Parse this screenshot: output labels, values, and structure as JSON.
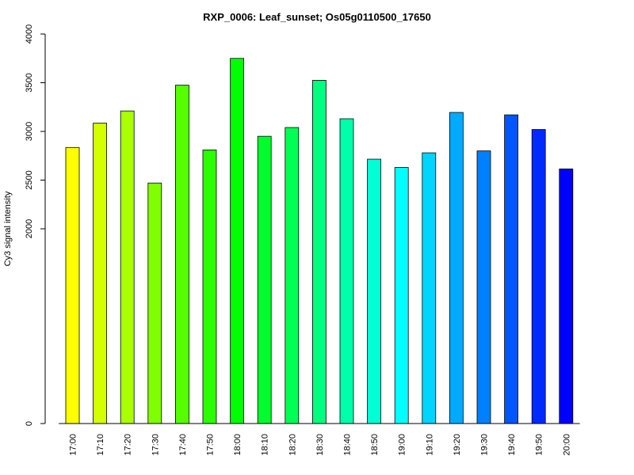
{
  "chart_data": {
    "type": "bar",
    "title": "RXP_0006: Leaf_sunset; Os05g0110500_17650",
    "xlabel": "",
    "ylabel": "Cy3 signal intensity",
    "ylim": [
      0,
      4000
    ],
    "yticks": [
      0,
      2000,
      2500,
      3000,
      3500,
      4000
    ],
    "grid": false,
    "legend": "none",
    "categories": [
      "17:00",
      "17:10",
      "17:20",
      "17:30",
      "17:40",
      "17:50",
      "18:00",
      "18:10",
      "18:20",
      "18:30",
      "18:40",
      "18:50",
      "19:00",
      "19:10",
      "19:20",
      "19:30",
      "19:40",
      "19:50",
      "20:00"
    ],
    "values": [
      2835,
      3085,
      3210,
      2470,
      3475,
      2810,
      3750,
      2950,
      3040,
      3525,
      3130,
      2715,
      2630,
      2780,
      3195,
      2800,
      3170,
      3020,
      2615
    ],
    "colors": [
      "#FFFF00",
      "#D4FF00",
      "#AAFF00",
      "#7FFF00",
      "#55FF00",
      "#2AFF00",
      "#00FF00",
      "#00FF2A",
      "#00FF55",
      "#00FF7F",
      "#00FFAA",
      "#00FFD4",
      "#00FFFF",
      "#00D4FF",
      "#00AAFF",
      "#007FFF",
      "#0055FF",
      "#002AFF",
      "#0000FF"
    ]
  }
}
